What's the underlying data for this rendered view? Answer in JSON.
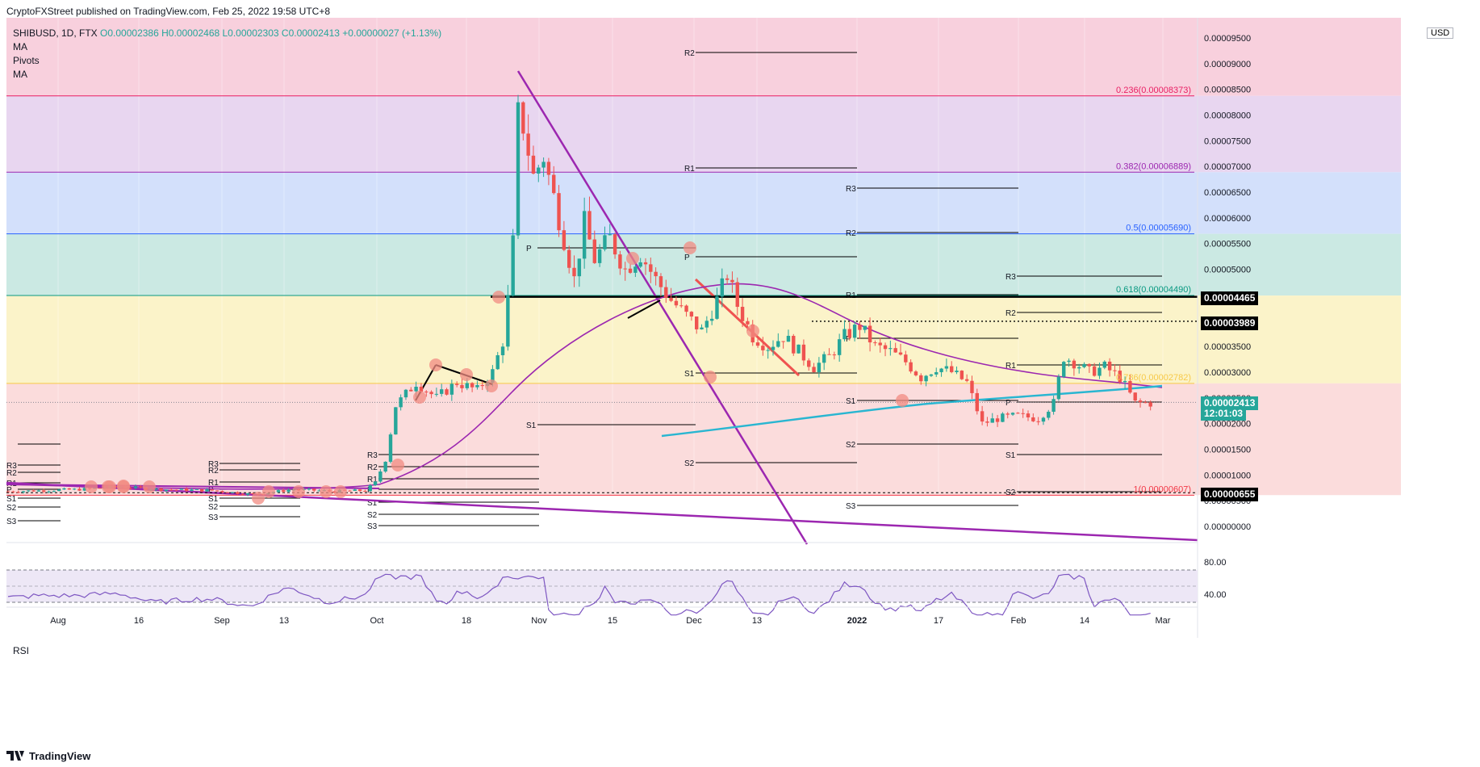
{
  "caption": "CryptoFXStreet published on TradingView.com, Feb 25, 2022 19:58 UTC+8",
  "legend": {
    "symbol": "SHIBUSD, 1D, FTX",
    "ohlc": "O0.00002386 H0.00002468 L0.00002303 C0.00002413 +0.00000027 (+1.13%)",
    "indicators": [
      "MA",
      "Pivots",
      "MA"
    ]
  },
  "currency": "USD",
  "footer_brand": "TradingView",
  "rsi_label": "RSI",
  "chart_data": {
    "type": "candlestick",
    "title": "SHIBUSD, 1D, FTX",
    "y_axis_ticks": [
      "0.00009500",
      "0.00009000",
      "0.00008500",
      "0.00008000",
      "0.00007500",
      "0.00007000",
      "0.00006500",
      "0.00006000",
      "0.00005500",
      "0.00005000",
      "0.00004500",
      "0.00004000",
      "0.00003500",
      "0.00003000",
      "0.00002500",
      "0.00002000",
      "0.00001500",
      "0.00001000",
      "0.00000500",
      "0.00000000"
    ],
    "y_range": [
      -2e-06,
      9.85e-05
    ],
    "x_axis_ticks": [
      "Aug",
      "16",
      "Sep",
      "13",
      "Oct",
      "18",
      "Nov",
      "15",
      "Dec",
      "13",
      "2022",
      "17",
      "Feb",
      "14",
      "Mar"
    ],
    "fib_levels": [
      {
        "label": "0.236(0.00008373)",
        "value": 8.373e-05,
        "color": "#e91e63"
      },
      {
        "label": "0.382(0.00006889)",
        "value": 6.889e-05,
        "color": "#9c27b0"
      },
      {
        "label": "0.5(0.00005690)",
        "value": 5.69e-05,
        "color": "#2962ff"
      },
      {
        "label": "0.618(0.00004490)",
        "value": 4.49e-05,
        "color": "#089981"
      },
      {
        "label": "0.786(0.00002782)",
        "value": 2.782e-05,
        "color": "#f7c948"
      },
      {
        "label": "1(0.00000607)",
        "value": 6.07e-06,
        "color": "#f23645"
      }
    ],
    "price_badges": [
      {
        "label": "0.00004465",
        "value": 4.465e-05,
        "color": "#000000"
      },
      {
        "label": "0.00003989",
        "value": 3.989e-05,
        "color": "#000000"
      },
      {
        "label": "0.00002413",
        "value": 2.413e-05,
        "color": "#26a69a"
      },
      {
        "label": "12:01:03",
        "value": 2.413e-05,
        "color": "#26a69a"
      },
      {
        "label": "0.00000655",
        "value": 6.55e-06,
        "color": "#000000"
      }
    ],
    "pivot_labels": [
      "R3",
      "R2",
      "R1",
      "P",
      "S1",
      "S2",
      "S3"
    ],
    "rsi_ticks": [
      "80.00",
      "40.00"
    ],
    "last_close": 2.413e-05
  }
}
